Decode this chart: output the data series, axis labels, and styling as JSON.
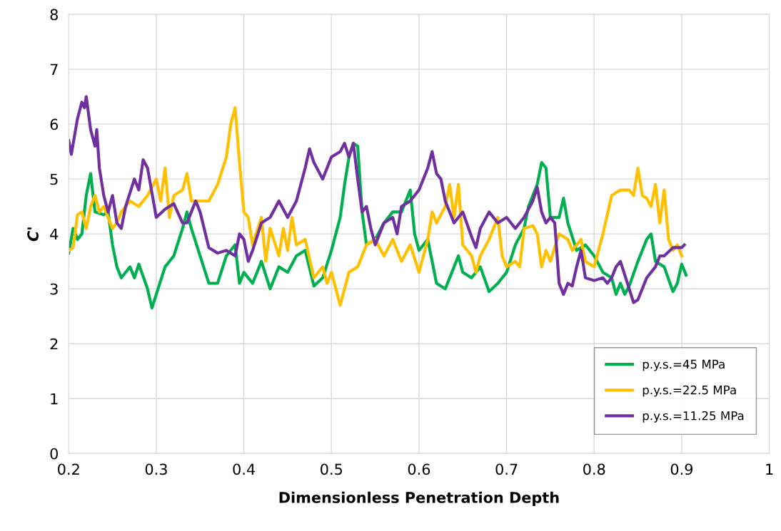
{
  "chart_data": {
    "type": "line",
    "xlabel": "Dimensionless Penetration Depth",
    "ylabel": "C'",
    "xlim": [
      0.2,
      1
    ],
    "xticks": [
      0.2,
      0.3,
      0.4,
      0.5,
      0.6,
      0.7,
      0.8,
      0.9,
      1
    ],
    "ylim": [
      0,
      8
    ],
    "yticks": [
      0,
      1,
      2,
      3,
      4,
      5,
      6,
      7,
      8
    ],
    "grid": true,
    "legend": "bottom right",
    "marker": "none",
    "line_style": "solid",
    "series": [
      {
        "name": "p.y.s.=45 MPa",
        "color": "#00b050",
        "x": [
          0.2,
          0.205,
          0.21,
          0.215,
          0.22,
          0.225,
          0.23,
          0.24,
          0.245,
          0.25,
          0.255,
          0.26,
          0.27,
          0.275,
          0.28,
          0.29,
          0.295,
          0.3,
          0.31,
          0.32,
          0.33,
          0.335,
          0.34,
          0.35,
          0.36,
          0.37,
          0.38,
          0.39,
          0.395,
          0.4,
          0.41,
          0.42,
          0.43,
          0.44,
          0.45,
          0.46,
          0.47,
          0.48,
          0.49,
          0.5,
          0.51,
          0.515,
          0.52,
          0.525,
          0.53,
          0.535,
          0.54,
          0.55,
          0.56,
          0.57,
          0.58,
          0.59,
          0.595,
          0.6,
          0.61,
          0.62,
          0.63,
          0.64,
          0.645,
          0.65,
          0.66,
          0.67,
          0.68,
          0.69,
          0.7,
          0.71,
          0.72,
          0.725,
          0.735,
          0.74,
          0.745,
          0.75,
          0.76,
          0.765,
          0.77,
          0.78,
          0.79,
          0.8,
          0.81,
          0.82,
          0.825,
          0.83,
          0.835,
          0.84,
          0.85,
          0.86,
          0.865,
          0.87,
          0.88,
          0.89,
          0.895,
          0.9,
          0.905
        ],
        "values": [
          3.65,
          4.1,
          3.9,
          4.0,
          4.7,
          5.1,
          4.4,
          4.35,
          4.4,
          3.8,
          3.4,
          3.2,
          3.4,
          3.2,
          3.45,
          3.0,
          2.65,
          2.9,
          3.4,
          3.6,
          4.1,
          4.4,
          4.1,
          3.6,
          3.1,
          3.1,
          3.6,
          3.8,
          3.1,
          3.3,
          3.1,
          3.5,
          3.0,
          3.4,
          3.3,
          3.6,
          3.7,
          3.05,
          3.2,
          3.7,
          4.3,
          4.9,
          5.4,
          5.65,
          5.6,
          4.4,
          3.8,
          3.9,
          4.2,
          4.4,
          4.4,
          4.8,
          4.0,
          3.7,
          3.9,
          3.1,
          3.0,
          3.4,
          3.6,
          3.3,
          3.2,
          3.4,
          2.95,
          3.1,
          3.3,
          3.8,
          4.1,
          4.5,
          4.9,
          5.3,
          5.2,
          4.3,
          4.3,
          4.65,
          4.2,
          3.7,
          3.8,
          3.6,
          3.3,
          3.2,
          2.9,
          3.1,
          2.9,
          3.05,
          3.5,
          3.9,
          4.0,
          3.5,
          3.4,
          2.95,
          3.1,
          3.45,
          3.25
        ]
      },
      {
        "name": "p.y.s.=22.5 MPa",
        "color": "#ffc000",
        "x": [
          0.2,
          0.205,
          0.21,
          0.215,
          0.22,
          0.225,
          0.23,
          0.235,
          0.24,
          0.245,
          0.25,
          0.255,
          0.26,
          0.27,
          0.28,
          0.29,
          0.3,
          0.305,
          0.31,
          0.315,
          0.32,
          0.33,
          0.335,
          0.34,
          0.35,
          0.36,
          0.37,
          0.38,
          0.385,
          0.39,
          0.395,
          0.4,
          0.405,
          0.41,
          0.42,
          0.425,
          0.43,
          0.44,
          0.445,
          0.45,
          0.455,
          0.46,
          0.47,
          0.48,
          0.49,
          0.495,
          0.5,
          0.51,
          0.52,
          0.53,
          0.54,
          0.55,
          0.56,
          0.57,
          0.58,
          0.59,
          0.6,
          0.61,
          0.615,
          0.62,
          0.63,
          0.635,
          0.64,
          0.645,
          0.65,
          0.66,
          0.665,
          0.67,
          0.68,
          0.69,
          0.695,
          0.7,
          0.71,
          0.715,
          0.72,
          0.73,
          0.735,
          0.74,
          0.745,
          0.75,
          0.76,
          0.77,
          0.775,
          0.785,
          0.79,
          0.8,
          0.81,
          0.82,
          0.83,
          0.84,
          0.845,
          0.85,
          0.855,
          0.86,
          0.865,
          0.87,
          0.875,
          0.88,
          0.885,
          0.89,
          0.895,
          0.9
        ],
        "values": [
          3.7,
          3.75,
          4.35,
          4.4,
          4.1,
          4.5,
          4.7,
          4.4,
          4.5,
          4.3,
          4.1,
          4.2,
          4.4,
          4.6,
          4.5,
          4.7,
          5.0,
          4.6,
          5.2,
          4.3,
          4.7,
          4.8,
          5.1,
          4.6,
          4.6,
          4.6,
          4.9,
          5.4,
          6.0,
          6.3,
          5.3,
          4.4,
          4.3,
          3.8,
          4.3,
          3.5,
          4.1,
          3.6,
          4.1,
          3.7,
          4.3,
          3.8,
          3.9,
          3.2,
          3.4,
          3.1,
          3.3,
          2.7,
          3.3,
          3.4,
          3.8,
          3.9,
          3.6,
          3.9,
          3.5,
          3.8,
          3.3,
          3.9,
          4.4,
          4.2,
          4.5,
          4.9,
          4.3,
          4.9,
          3.8,
          3.6,
          3.3,
          3.6,
          3.9,
          4.3,
          3.6,
          3.4,
          3.5,
          3.4,
          4.1,
          4.15,
          4.0,
          3.4,
          3.7,
          3.5,
          4.0,
          3.9,
          3.7,
          3.9,
          3.5,
          3.4,
          4.0,
          4.7,
          4.8,
          4.8,
          4.7,
          5.2,
          4.7,
          4.65,
          4.5,
          4.9,
          4.2,
          4.8,
          3.9,
          3.7,
          3.8,
          3.6
        ]
      },
      {
        "name": "p.y.s.=11.25 MPa",
        "color": "#7030a0",
        "x": [
          0.2,
          0.203,
          0.21,
          0.215,
          0.218,
          0.22,
          0.225,
          0.23,
          0.232,
          0.235,
          0.24,
          0.245,
          0.25,
          0.255,
          0.26,
          0.265,
          0.275,
          0.28,
          0.285,
          0.29,
          0.3,
          0.31,
          0.32,
          0.33,
          0.335,
          0.34,
          0.345,
          0.35,
          0.36,
          0.37,
          0.38,
          0.39,
          0.395,
          0.4,
          0.405,
          0.41,
          0.42,
          0.43,
          0.44,
          0.45,
          0.46,
          0.47,
          0.475,
          0.48,
          0.49,
          0.5,
          0.51,
          0.515,
          0.52,
          0.525,
          0.53,
          0.535,
          0.54,
          0.545,
          0.55,
          0.56,
          0.57,
          0.575,
          0.58,
          0.59,
          0.6,
          0.61,
          0.615,
          0.62,
          0.625,
          0.63,
          0.64,
          0.65,
          0.66,
          0.665,
          0.67,
          0.68,
          0.69,
          0.7,
          0.71,
          0.72,
          0.73,
          0.735,
          0.74,
          0.745,
          0.75,
          0.755,
          0.76,
          0.765,
          0.77,
          0.775,
          0.78,
          0.785,
          0.79,
          0.8,
          0.81,
          0.815,
          0.82,
          0.825,
          0.83,
          0.84,
          0.845,
          0.85,
          0.86,
          0.87,
          0.875,
          0.88,
          0.89,
          0.9,
          0.903
        ],
        "values": [
          5.7,
          5.45,
          6.1,
          6.4,
          6.3,
          6.5,
          5.9,
          5.6,
          5.9,
          5.2,
          4.7,
          4.4,
          4.7,
          4.2,
          4.1,
          4.5,
          5.0,
          4.8,
          5.35,
          5.2,
          4.3,
          4.45,
          4.55,
          4.2,
          4.2,
          4.4,
          4.6,
          4.4,
          3.75,
          3.65,
          3.7,
          3.6,
          4.0,
          3.9,
          3.5,
          3.7,
          4.2,
          4.3,
          4.6,
          4.3,
          4.6,
          5.2,
          5.55,
          5.3,
          5.0,
          5.4,
          5.5,
          5.65,
          5.4,
          5.65,
          5.0,
          4.4,
          4.5,
          4.1,
          3.8,
          4.2,
          4.3,
          4.0,
          4.5,
          4.6,
          4.8,
          5.2,
          5.5,
          5.1,
          5.0,
          4.6,
          4.2,
          4.4,
          3.95,
          3.75,
          4.1,
          4.4,
          4.2,
          4.3,
          4.1,
          4.3,
          4.6,
          4.85,
          4.4,
          4.2,
          4.3,
          4.2,
          3.1,
          2.9,
          3.1,
          3.05,
          3.4,
          3.7,
          3.2,
          3.15,
          3.2,
          3.1,
          3.2,
          3.4,
          3.5,
          3.0,
          2.75,
          2.8,
          3.2,
          3.4,
          3.6,
          3.6,
          3.75,
          3.75,
          3.8
        ]
      }
    ]
  }
}
